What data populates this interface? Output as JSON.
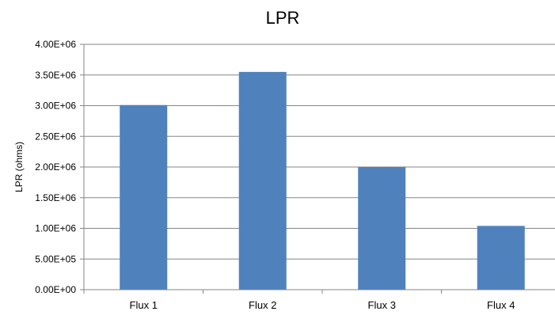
{
  "chart_data": {
    "type": "bar",
    "title": "LPR",
    "xlabel": "",
    "ylabel": "LPR (ohms)",
    "categories": [
      "Flux 1",
      "Flux 2",
      "Flux 3",
      "Flux 4"
    ],
    "values": [
      3010000,
      3550000,
      2000000,
      1040000
    ],
    "ylim": [
      0,
      4000000
    ],
    "yticks": [
      0,
      500000,
      1000000,
      1500000,
      2000000,
      2500000,
      3000000,
      3500000,
      4000000
    ],
    "ytick_labels": [
      "0.00E+00",
      "5.00E+05",
      "1.00E+06",
      "1.50E+06",
      "2.00E+06",
      "2.50E+06",
      "3.00E+06",
      "3.50E+06",
      "4.00E+06"
    ],
    "grid": true,
    "legend": "none",
    "colors": {
      "bar": "#4f81bd",
      "grid": "#868686",
      "axis": "#868686"
    }
  }
}
